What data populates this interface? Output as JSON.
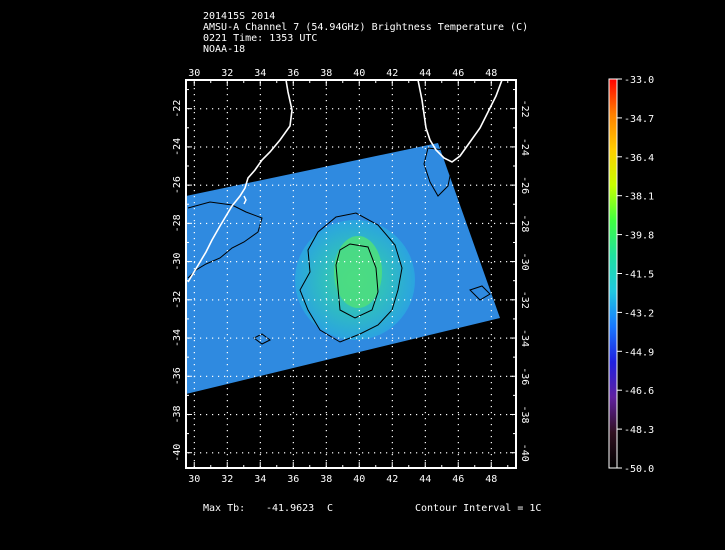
{
  "header": {
    "line1": "201415S 2014",
    "line2": "AMSU-A Channel 7 (54.94GHz) Brightness Temperature (C)",
    "line3": "0221 Time: 1353 UTC",
    "line4": "NOAA-18"
  },
  "map": {
    "lon_ticks": [
      "30",
      "32",
      "34",
      "36",
      "38",
      "40",
      "42",
      "44",
      "46",
      "48"
    ],
    "lat_ticks": [
      "-22",
      "-24",
      "-26",
      "-28",
      "-30",
      "-32",
      "-34",
      "-36",
      "-38",
      "-40"
    ],
    "lon_range": [
      29.5,
      49.5
    ],
    "lat_range": [
      -20.5,
      -40.8
    ],
    "swath_color": "#2f8ae0",
    "core_color": "#3fd6a0",
    "coast_color": "#ffffff",
    "contour_color": "#000000"
  },
  "colorbar": {
    "labels": [
      "-33.0",
      "-34.7",
      "-36.4",
      "-38.1",
      "-39.8",
      "-41.5",
      "-43.2",
      "-44.9",
      "-46.6",
      "-48.3",
      "-50.0"
    ],
    "colors": [
      "#ff0000",
      "#ff8000",
      "#ffcc00",
      "#c8ff00",
      "#40ff40",
      "#20e0a0",
      "#20c8e0",
      "#1878ff",
      "#2020e0",
      "#6020a0",
      "#301020",
      "#000000"
    ]
  },
  "footer": {
    "max_label": "Max Tb:",
    "max_value": "-41.9623",
    "max_unit": "C",
    "contour": "Contour Interval = 1C"
  }
}
